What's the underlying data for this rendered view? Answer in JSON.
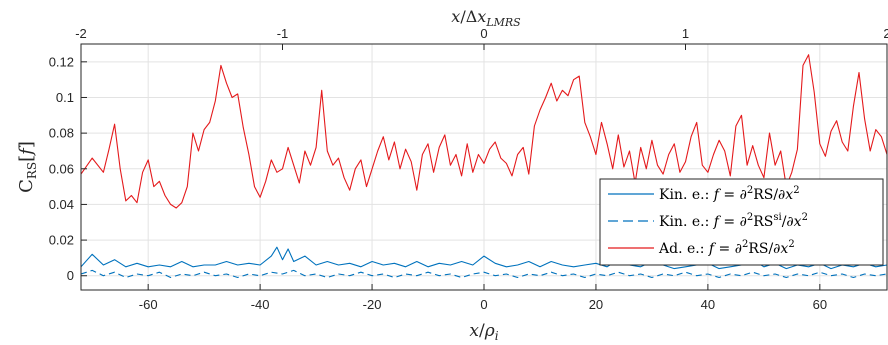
{
  "chart_data": {
    "type": "line",
    "xlabel": "x/ρ_i",
    "ylabel": "C_RS[f]",
    "top_xlabel": "x/Δx_LMRS",
    "xlim": [
      -72,
      72
    ],
    "ylim": [
      -0.008,
      0.13
    ],
    "top_xlim": [
      -2,
      2
    ],
    "grid": true,
    "legend_position": "lower-right",
    "x_ticks": [
      -60,
      -40,
      -20,
      0,
      20,
      40,
      60
    ],
    "x_tick_labels": [
      "-60",
      "-40",
      "-20",
      "0",
      "20",
      "40",
      "60"
    ],
    "top_x_ticks": [
      -2,
      -1,
      0,
      1,
      2
    ],
    "top_x_tick_labels": [
      "-2",
      "-1",
      "0",
      "1",
      "2"
    ],
    "y_ticks": [
      0,
      0.02,
      0.04,
      0.06,
      0.08,
      0.1,
      0.12
    ],
    "y_tick_labels": [
      "0",
      "0.02",
      "0.04",
      "0.06",
      "0.08",
      "0.1",
      "0.12"
    ],
    "series": [
      {
        "name": "Kin. e.: f = ∂²RS/∂x²",
        "color": "#0072BD",
        "dash": "solid",
        "x": [
          -72,
          -70,
          -68,
          -66,
          -64,
          -62,
          -60,
          -58,
          -56,
          -54,
          -52,
          -50,
          -48,
          -46,
          -44,
          -42,
          -40,
          -38,
          -37,
          -36,
          -35,
          -34,
          -32,
          -30,
          -28,
          -26,
          -24,
          -22,
          -20,
          -18,
          -16,
          -14,
          -12,
          -10,
          -8,
          -6,
          -4,
          -2,
          0,
          2,
          4,
          6,
          8,
          10,
          12,
          14,
          16,
          18,
          20,
          22,
          24,
          26,
          28,
          30,
          32,
          34,
          36,
          38,
          40,
          42,
          44,
          46,
          48,
          50,
          52,
          54,
          56,
          58,
          60,
          62,
          64,
          66,
          68,
          70,
          72
        ],
        "y": [
          0.005,
          0.012,
          0.006,
          0.009,
          0.005,
          0.007,
          0.005,
          0.006,
          0.005,
          0.008,
          0.005,
          0.006,
          0.006,
          0.008,
          0.006,
          0.007,
          0.006,
          0.011,
          0.016,
          0.009,
          0.015,
          0.008,
          0.011,
          0.006,
          0.008,
          0.006,
          0.007,
          0.005,
          0.008,
          0.006,
          0.007,
          0.005,
          0.008,
          0.005,
          0.007,
          0.006,
          0.008,
          0.006,
          0.011,
          0.007,
          0.005,
          0.006,
          0.008,
          0.005,
          0.008,
          0.006,
          0.005,
          0.006,
          0.007,
          0.005,
          0.009,
          0.006,
          0.005,
          0.008,
          0.006,
          0.004,
          0.005,
          0.006,
          0.007,
          0.004,
          0.005,
          0.006,
          0.009,
          0.005,
          0.007,
          0.004,
          0.006,
          0.005,
          0.007,
          0.004,
          0.006,
          0.005,
          0.007,
          0.005,
          0.006
        ]
      },
      {
        "name": "Kin. e.: f = ∂²RS^si/∂x²",
        "color": "#0072BD",
        "dash": "dashed",
        "x": [
          -72,
          -70,
          -68,
          -66,
          -64,
          -62,
          -60,
          -58,
          -56,
          -54,
          -52,
          -50,
          -48,
          -46,
          -44,
          -42,
          -40,
          -38,
          -36,
          -34,
          -32,
          -30,
          -28,
          -26,
          -24,
          -22,
          -20,
          -18,
          -16,
          -14,
          -12,
          -10,
          -8,
          -6,
          -4,
          -2,
          0,
          2,
          4,
          6,
          8,
          10,
          12,
          14,
          16,
          18,
          20,
          22,
          24,
          26,
          28,
          30,
          32,
          34,
          36,
          38,
          40,
          42,
          44,
          46,
          48,
          50,
          52,
          54,
          56,
          58,
          60,
          62,
          64,
          66,
          68,
          70,
          72
        ],
        "y": [
          0.001,
          0.003,
          0.0,
          0.002,
          -0.001,
          0.001,
          0.0,
          0.002,
          -0.001,
          0.001,
          0.0,
          0.002,
          0.0,
          0.001,
          -0.001,
          0.001,
          0.0,
          0.002,
          0.001,
          0.003,
          0.0,
          0.001,
          -0.001,
          0.001,
          0.0,
          0.002,
          0.0,
          0.001,
          -0.001,
          0.001,
          0.0,
          0.002,
          0.0,
          0.001,
          -0.001,
          0.001,
          0.002,
          0.0,
          0.001,
          -0.001,
          0.001,
          0.0,
          0.002,
          0.0,
          0.001,
          -0.001,
          0.001,
          0.0,
          0.002,
          0.0,
          0.001,
          -0.001,
          0.001,
          0.0,
          0.002,
          0.0,
          0.001,
          -0.001,
          0.001,
          0.0,
          0.002,
          0.0,
          0.001,
          -0.001,
          0.001,
          0.0,
          0.002,
          0.0,
          0.001,
          -0.001,
          0.001,
          0.0,
          0.001
        ]
      },
      {
        "name": "Ad. e.: f = ∂²RS/∂x²",
        "color": "#E41A1C",
        "dash": "solid",
        "x": [
          -72,
          -70,
          -68,
          -67,
          -66,
          -65,
          -64,
          -63,
          -62,
          -61,
          -60,
          -59,
          -58,
          -57,
          -56,
          -55,
          -54,
          -53,
          -52,
          -51,
          -50,
          -49,
          -48,
          -47,
          -46,
          -45,
          -44,
          -43,
          -42,
          -41,
          -40,
          -39,
          -38,
          -37,
          -36,
          -35,
          -34,
          -33,
          -32,
          -31,
          -30,
          -29,
          -28,
          -27,
          -26,
          -25,
          -24,
          -23,
          -22,
          -21,
          -20,
          -19,
          -18,
          -17,
          -16,
          -15,
          -14,
          -13,
          -12,
          -11,
          -10,
          -9,
          -8,
          -7,
          -6,
          -5,
          -4,
          -3,
          -2,
          -1,
          0,
          1,
          2,
          3,
          4,
          5,
          6,
          7,
          8,
          9,
          10,
          11,
          12,
          13,
          14,
          15,
          16,
          17,
          18,
          19,
          20,
          21,
          22,
          23,
          24,
          25,
          26,
          27,
          28,
          29,
          30,
          31,
          32,
          33,
          34,
          35,
          36,
          37,
          38,
          39,
          40,
          41,
          42,
          43,
          44,
          45,
          46,
          47,
          48,
          49,
          50,
          51,
          52,
          53,
          54,
          55,
          56,
          57,
          58,
          59,
          60,
          61,
          62,
          63,
          64,
          65,
          66,
          67,
          68,
          69,
          70,
          71,
          72
        ],
        "y": [
          0.057,
          0.066,
          0.058,
          0.071,
          0.085,
          0.06,
          0.042,
          0.045,
          0.041,
          0.058,
          0.065,
          0.05,
          0.053,
          0.045,
          0.04,
          0.038,
          0.041,
          0.05,
          0.08,
          0.07,
          0.082,
          0.086,
          0.098,
          0.118,
          0.108,
          0.1,
          0.102,
          0.083,
          0.068,
          0.05,
          0.044,
          0.053,
          0.065,
          0.058,
          0.06,
          0.072,
          0.062,
          0.052,
          0.07,
          0.062,
          0.072,
          0.104,
          0.07,
          0.062,
          0.066,
          0.055,
          0.048,
          0.06,
          0.065,
          0.05,
          0.06,
          0.07,
          0.078,
          0.065,
          0.075,
          0.06,
          0.071,
          0.064,
          0.048,
          0.068,
          0.074,
          0.058,
          0.072,
          0.079,
          0.062,
          0.068,
          0.056,
          0.074,
          0.058,
          0.068,
          0.063,
          0.071,
          0.075,
          0.066,
          0.063,
          0.056,
          0.068,
          0.072,
          0.057,
          0.084,
          0.093,
          0.1,
          0.108,
          0.098,
          0.104,
          0.101,
          0.11,
          0.112,
          0.086,
          0.078,
          0.068,
          0.086,
          0.074,
          0.06,
          0.079,
          0.061,
          0.07,
          0.052,
          0.072,
          0.06,
          0.076,
          0.062,
          0.057,
          0.068,
          0.074,
          0.058,
          0.064,
          0.078,
          0.086,
          0.062,
          0.058,
          0.068,
          0.076,
          0.07,
          0.056,
          0.084,
          0.09,
          0.062,
          0.073,
          0.062,
          0.055,
          0.08,
          0.062,
          0.07,
          0.05,
          0.058,
          0.071,
          0.118,
          0.124,
          0.103,
          0.074,
          0.067,
          0.081,
          0.087,
          0.075,
          0.07,
          0.095,
          0.114,
          0.088,
          0.07,
          0.082,
          0.078,
          0.068
        ]
      }
    ]
  }
}
